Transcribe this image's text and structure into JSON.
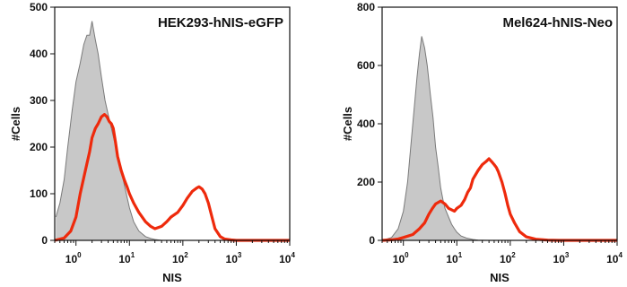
{
  "chart_data": [
    {
      "type": "area",
      "title": "HEK293-hNIS-eGFP",
      "xlabel": "NIS",
      "ylabel": "#Cells",
      "xscale": "log",
      "xlim": [
        0.4,
        10000
      ],
      "ylim": [
        0,
        500
      ],
      "xticks": [
        {
          "base": "10",
          "exp": "0"
        },
        {
          "base": "10",
          "exp": "1"
        },
        {
          "base": "10",
          "exp": "2"
        },
        {
          "base": "10",
          "exp": "3"
        },
        {
          "base": "10",
          "exp": "4"
        }
      ],
      "yticks": [
        "0",
        "100",
        "200",
        "300",
        "400",
        "500"
      ],
      "series": [
        {
          "role": "control",
          "fill": "#c8c8c8",
          "stroke": "#7a7a7a",
          "x": [
            0.42,
            0.5,
            0.6,
            0.7,
            0.85,
            1.0,
            1.2,
            1.4,
            1.6,
            1.8,
            2.0,
            2.3,
            2.6,
            3.0,
            3.5,
            4.0,
            4.6,
            5.3,
            6.0,
            7.0,
            8.0,
            10,
            12,
            15,
            20,
            25,
            30,
            40
          ],
          "y": [
            50,
            80,
            130,
            200,
            280,
            340,
            380,
            420,
            440,
            440,
            470,
            430,
            400,
            350,
            300,
            270,
            240,
            210,
            180,
            150,
            120,
            70,
            40,
            20,
            8,
            4,
            2,
            0
          ]
        },
        {
          "role": "sample",
          "stroke": "#ee2a0c",
          "x": [
            0.4,
            0.6,
            0.8,
            1.0,
            1.2,
            1.5,
            1.8,
            2.0,
            2.3,
            2.6,
            3.0,
            3.4,
            3.8,
            4.2,
            4.6,
            5.0,
            5.5,
            6.0,
            7.0,
            8.0,
            9.0,
            10,
            12,
            15,
            20,
            25,
            30,
            40,
            50,
            60,
            80,
            100,
            120,
            150,
            180,
            200,
            230,
            260,
            300,
            350,
            400,
            500,
            600,
            800,
            1000,
            1500,
            2000,
            5000,
            10000
          ],
          "y": [
            0,
            5,
            20,
            50,
            100,
            150,
            190,
            220,
            240,
            250,
            265,
            270,
            265,
            255,
            250,
            240,
            210,
            180,
            150,
            130,
            115,
            100,
            80,
            60,
            40,
            30,
            25,
            30,
            40,
            50,
            60,
            75,
            90,
            105,
            112,
            115,
            110,
            100,
            80,
            50,
            25,
            8,
            3,
            1,
            0,
            0,
            0,
            0,
            0
          ]
        }
      ]
    },
    {
      "type": "area",
      "title": "Mel624-hNIS-Neo",
      "xlabel": "NIS",
      "ylabel": "#Cells",
      "xscale": "log",
      "xlim": [
        0.4,
        10000
      ],
      "ylim": [
        0,
        800
      ],
      "xticks": [
        {
          "base": "10",
          "exp": "0"
        },
        {
          "base": "10",
          "exp": "1"
        },
        {
          "base": "10",
          "exp": "2"
        },
        {
          "base": "10",
          "exp": "3"
        },
        {
          "base": "10",
          "exp": "4"
        }
      ],
      "yticks": [
        "0",
        "200",
        "400",
        "600",
        "800"
      ],
      "series": [
        {
          "role": "control",
          "fill": "#c8c8c8",
          "stroke": "#7a7a7a",
          "x": [
            0.4,
            0.6,
            0.8,
            1.0,
            1.2,
            1.5,
            1.8,
            2.0,
            2.2,
            2.5,
            2.8,
            3.2,
            3.6,
            4.0,
            4.5,
            5.0,
            5.5,
            6.0,
            7.0,
            8.0,
            9.0,
            10,
            12,
            15,
            20,
            25,
            40
          ],
          "y": [
            0,
            10,
            40,
            100,
            200,
            400,
            560,
            640,
            700,
            660,
            600,
            500,
            420,
            320,
            250,
            180,
            140,
            110,
            80,
            55,
            40,
            28,
            15,
            8,
            3,
            1,
            0
          ]
        },
        {
          "role": "sample",
          "stroke": "#ee2a0c",
          "x": [
            0.4,
            0.6,
            0.8,
            1.0,
            1.5,
            2.0,
            2.5,
            3.0,
            3.5,
            4.0,
            5.0,
            6.0,
            7.0,
            8.0,
            9.0,
            10,
            12,
            14,
            16,
            18,
            20,
            25,
            30,
            35,
            40,
            45,
            50,
            55,
            60,
            70,
            80,
            90,
            100,
            120,
            150,
            200,
            300,
            500,
            800,
            1000,
            2000,
            5000,
            10000
          ],
          "y": [
            0,
            2,
            5,
            10,
            20,
            40,
            60,
            90,
            110,
            125,
            135,
            125,
            110,
            105,
            100,
            110,
            120,
            140,
            165,
            180,
            210,
            240,
            260,
            270,
            280,
            270,
            260,
            250,
            235,
            200,
            160,
            120,
            90,
            60,
            30,
            12,
            4,
            1,
            0,
            0,
            0,
            0,
            0
          ]
        }
      ]
    }
  ]
}
